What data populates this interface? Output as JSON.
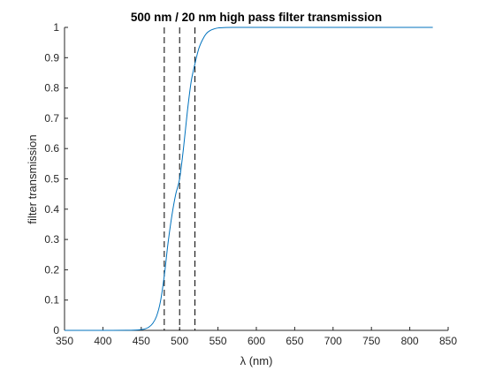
{
  "chart_data": {
    "type": "line",
    "title": "500 nm / 20 nm high pass filter transmission",
    "xlabel": "λ (nm)",
    "ylabel": "filter transmission",
    "xlim": [
      350,
      850
    ],
    "ylim": [
      0,
      1
    ],
    "x_ticks": [
      350,
      400,
      450,
      500,
      550,
      600,
      650,
      700,
      750,
      800,
      850
    ],
    "x_tick_labels": [
      "350",
      "400",
      "450",
      "500",
      "550",
      "600",
      "650",
      "700",
      "750",
      "800",
      "850"
    ],
    "y_ticks": [
      0,
      0.1,
      0.2,
      0.3,
      0.4,
      0.5,
      0.6,
      0.7,
      0.8,
      0.9,
      1
    ],
    "y_tick_labels": [
      "0",
      "0.1",
      "0.2",
      "0.3",
      "0.4",
      "0.5",
      "0.6",
      "0.7",
      "0.8",
      "0.9",
      "1"
    ],
    "grid": false,
    "series": [
      {
        "name": "filter transmission",
        "color": "#0072BD",
        "x": [
          350,
          400,
          430,
          440,
          450,
          455,
          460,
          465,
          470,
          475,
          480,
          485,
          490,
          495,
          500,
          505,
          510,
          515,
          520,
          525,
          530,
          535,
          540,
          545,
          550,
          560,
          570,
          580,
          600,
          700,
          830
        ],
        "y": [
          0,
          0,
          0.0002,
          0.0006,
          0.0025,
          0.005,
          0.011,
          0.023,
          0.047,
          0.095,
          0.18,
          0.29,
          0.38,
          0.45,
          0.5,
          0.6,
          0.72,
          0.82,
          0.88,
          0.93,
          0.96,
          0.98,
          0.99,
          0.995,
          0.998,
          0.9995,
          1,
          1,
          1,
          1,
          1
        ]
      }
    ],
    "vertical_lines": [
      {
        "x": 480,
        "style": "dashed",
        "color": "#000000"
      },
      {
        "x": 500,
        "style": "dashed",
        "color": "#000000"
      },
      {
        "x": 520,
        "style": "dashed",
        "color": "#000000"
      }
    ]
  }
}
